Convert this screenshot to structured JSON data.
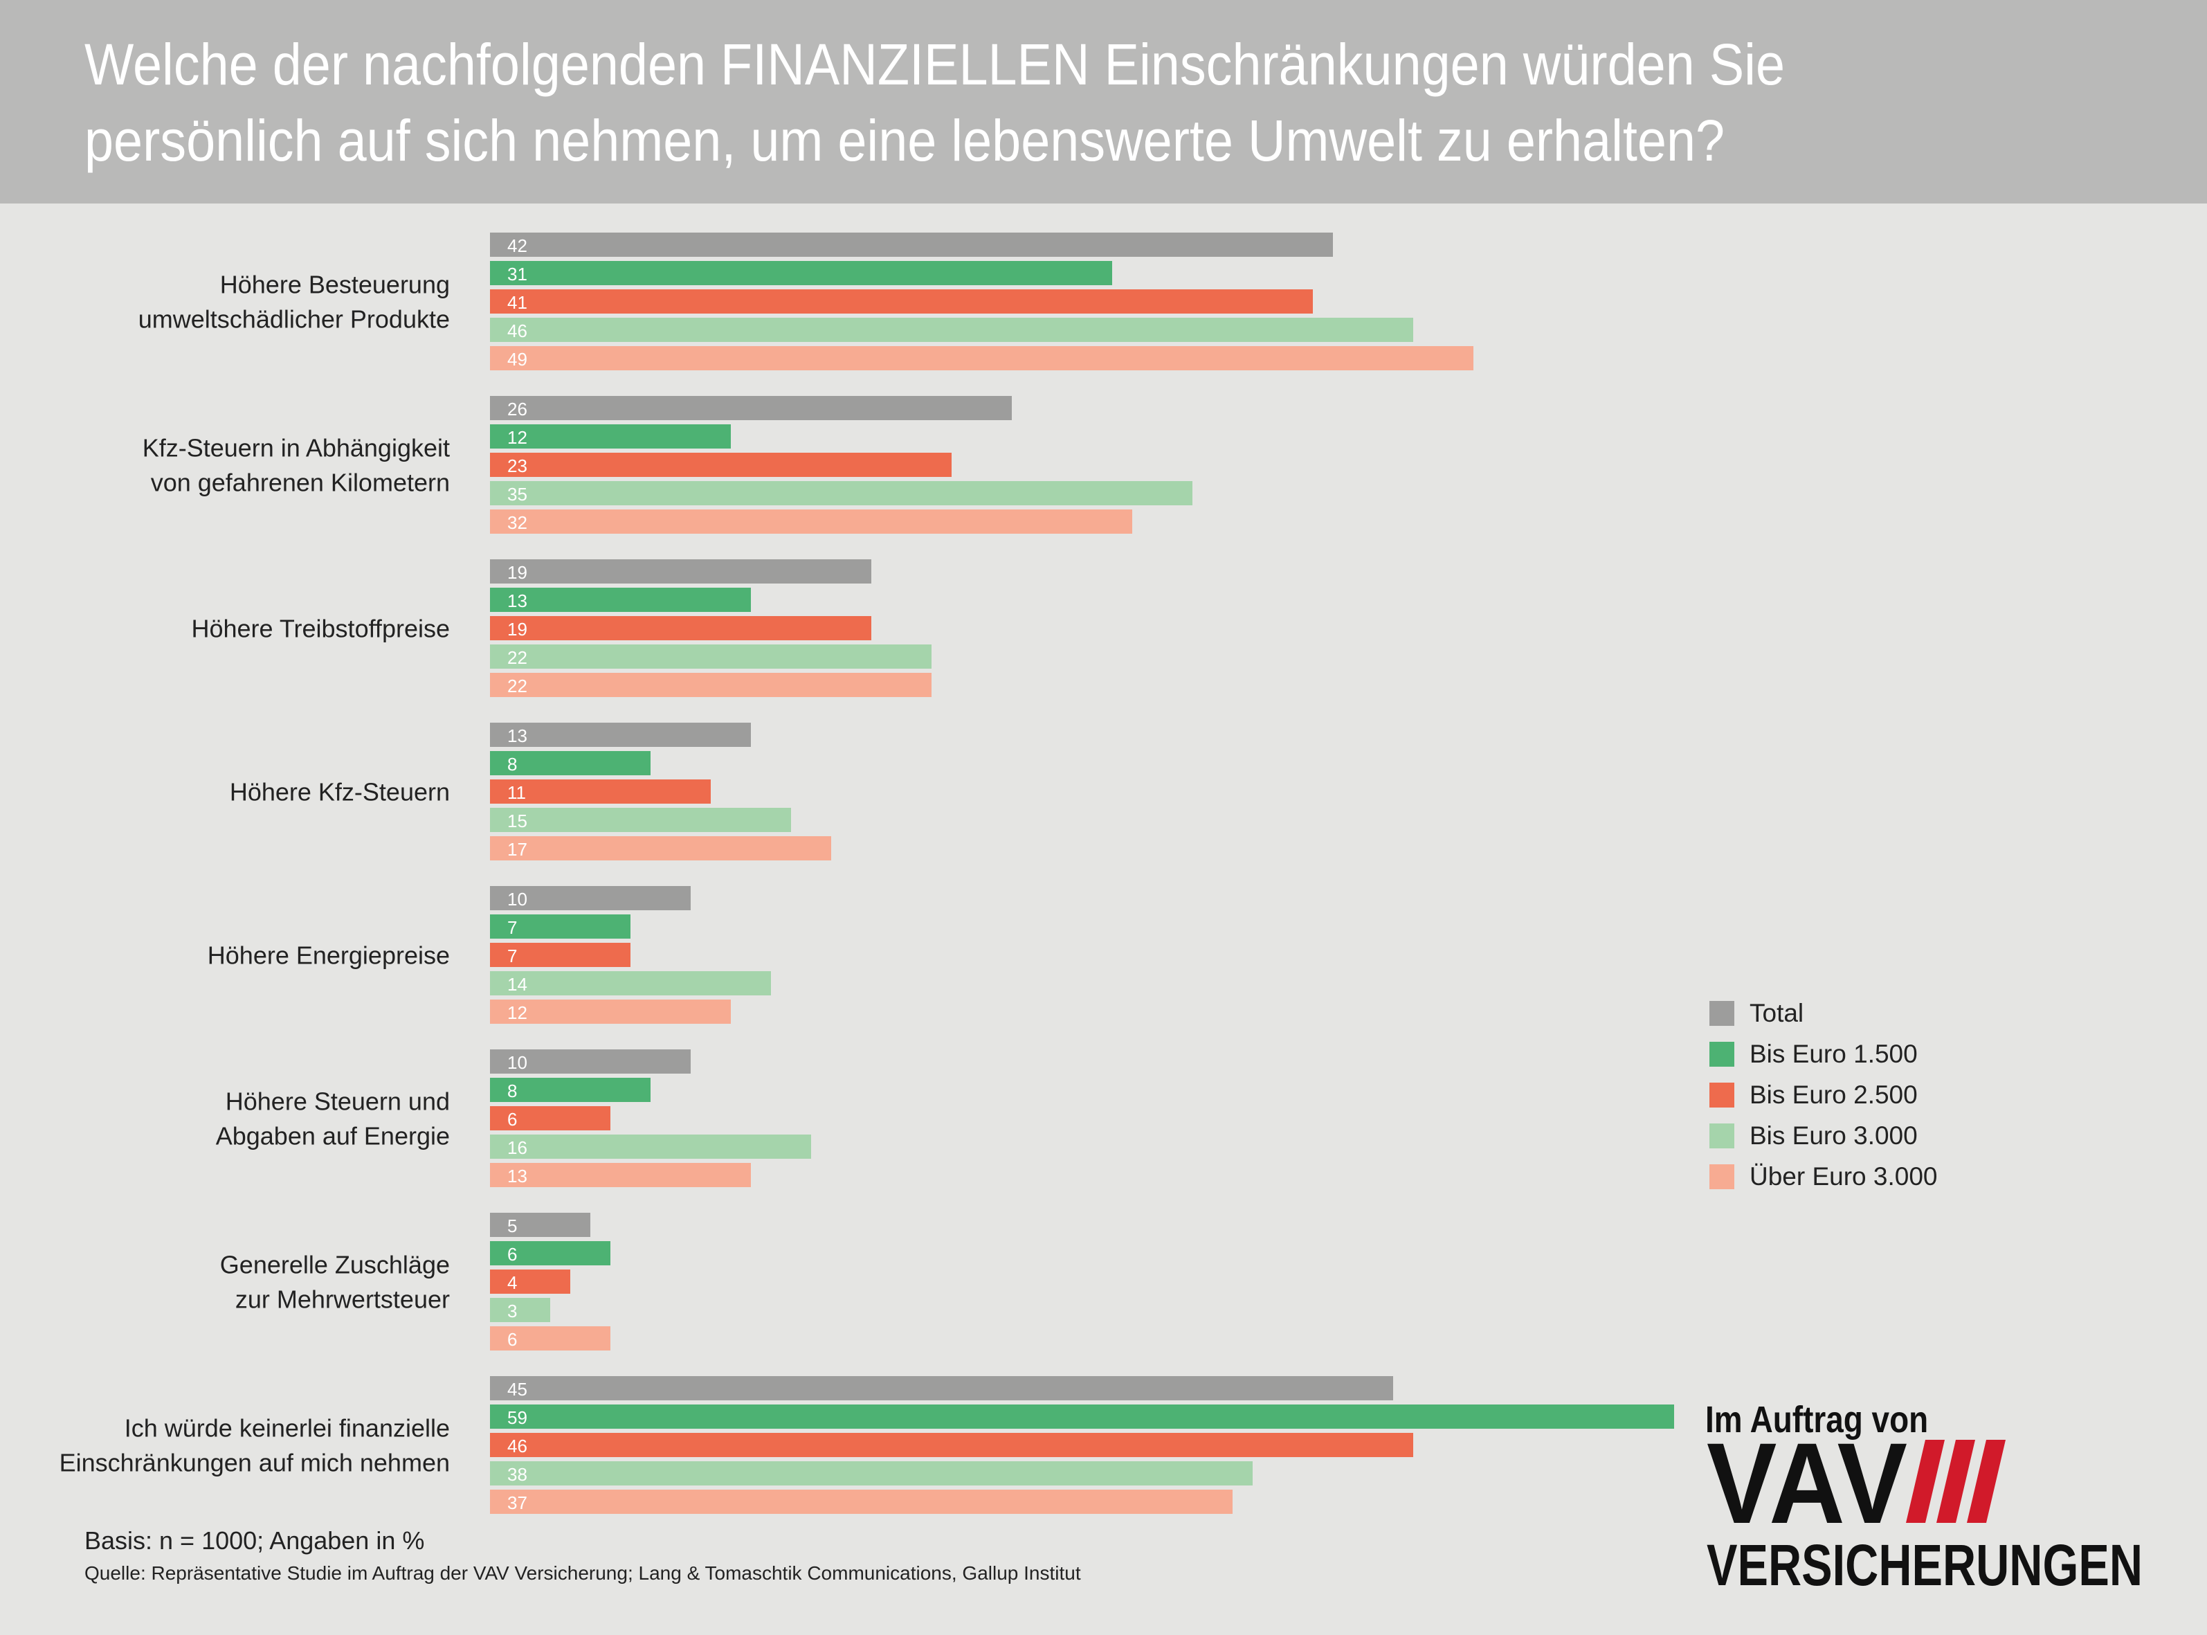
{
  "header": {
    "title": "Welche der nachfolgenden FINANZIELLEN Einschränkungen würden Sie persönlich auf sich nehmen, um eine lebenswerte Umwelt zu erhalten?",
    "background_color": "#b9b9b8"
  },
  "chart_data": {
    "type": "bar",
    "orientation": "horizontal",
    "title": "Welche der nachfolgenden FINANZIELLEN Einschränkungen würden Sie persönlich auf sich nehmen, um eine lebenswerte Umwelt zu erhalten?",
    "xlabel": "",
    "ylabel": "",
    "xlim": [
      0,
      60
    ],
    "grid": false,
    "legend_position": "right",
    "categories": [
      "Höhere Besteuerung\numweltschädlicher Produkte",
      "Kfz-Steuern in Abhängigkeit\nvon gefahrenen Kilometern",
      "Höhere Treibstoffpreise",
      "Höhere Kfz-Steuern",
      "Höhere Energiepreise",
      "Höhere Steuern und\nAbgaben auf Energie",
      "Generelle Zuschläge\nzur Mehrwertsteuer",
      "Ich würde keinerlei finanzielle\nEinschränkungen auf mich nehmen"
    ],
    "series": [
      {
        "name": "Total",
        "color": "#9d9d9c",
        "values": [
          42,
          26,
          19,
          13,
          10,
          10,
          5,
          45
        ]
      },
      {
        "name": "Bis Euro 1.500",
        "color": "#4db273",
        "values": [
          31,
          12,
          13,
          8,
          7,
          8,
          6,
          59
        ]
      },
      {
        "name": "Bis Euro 2.500",
        "color": "#ee6b4d",
        "values": [
          41,
          23,
          19,
          11,
          7,
          6,
          4,
          46
        ]
      },
      {
        "name": "Bis Euro 3.000",
        "color": "#a5d4ab",
        "values": [
          46,
          35,
          22,
          15,
          14,
          16,
          3,
          38
        ]
      },
      {
        "name": "Über Euro 3.000",
        "color": "#f7ab92",
        "values": [
          49,
          32,
          22,
          17,
          12,
          13,
          6,
          37
        ]
      }
    ],
    "data_labels": true
  },
  "footnotes": {
    "basis": "Basis: n = 1000; Angaben in %",
    "source": "Quelle: Repräsentative Studie im Auftrag der VAV Versicherung; Lang & Tomaschtik Communications, Gallup Institut"
  },
  "branding": {
    "caption": "Im Auftrag von",
    "logo_word": "VAV",
    "logo_subword": "VERSICHERUNGEN",
    "logo_text_color": "#111111",
    "logo_stripe_color": "#d11a2a"
  }
}
